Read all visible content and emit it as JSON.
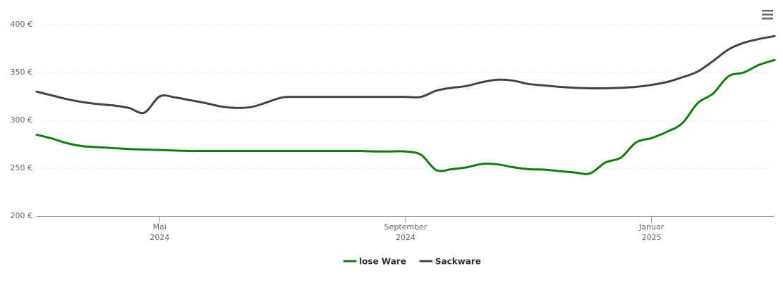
{
  "chart_data": {
    "type": "line",
    "categories": [
      null,
      null,
      null,
      null,
      null,
      null,
      null,
      null,
      {
        "month": "Mai",
        "year": "2024"
      },
      null,
      null,
      null,
      null,
      null,
      null,
      null,
      null,
      null,
      null,
      null,
      null,
      null,
      null,
      null,
      {
        "month": "September",
        "year": "2024"
      },
      null,
      null,
      null,
      null,
      null,
      null,
      null,
      null,
      null,
      null,
      null,
      null,
      null,
      null,
      null,
      {
        "month": "Januar",
        "year": "2025"
      },
      null,
      null,
      null,
      null,
      null,
      null,
      null,
      null
    ],
    "series": [
      {
        "name": "lose Ware",
        "color": "#0e7d0e",
        "values": [
          285,
          281,
          276,
          273,
          272,
          271,
          270,
          269.5,
          269,
          268.5,
          268,
          268,
          268,
          268,
          268,
          268,
          268,
          268,
          268,
          268,
          268,
          268,
          267.5,
          267.5,
          267.5,
          264,
          248,
          249,
          251,
          254.5,
          254,
          251,
          249,
          248.5,
          247,
          245.5,
          244.5,
          256,
          261,
          277,
          281.5,
          288,
          297,
          318,
          328,
          346,
          350,
          358,
          363
        ]
      },
      {
        "name": "Sackware",
        "color": "#434343",
        "values": [
          330,
          326,
          322,
          319,
          317,
          315.5,
          313,
          308,
          325,
          324,
          321,
          318,
          314.5,
          313,
          314,
          319,
          324,
          324.5,
          324.5,
          324.5,
          324.5,
          324.5,
          324.5,
          324.5,
          324.5,
          324.5,
          331,
          334,
          336,
          340,
          342.5,
          341.5,
          338,
          336.5,
          335,
          334,
          333.5,
          333.5,
          334,
          335,
          337,
          340,
          345,
          351,
          362,
          374,
          381,
          385,
          388
        ]
      }
    ],
    "ylim": [
      200,
      400
    ],
    "yticks": [
      {
        "value": 200,
        "label": "200 €"
      },
      {
        "value": 250,
        "label": "250 €"
      },
      {
        "value": 300,
        "label": "300 €"
      },
      {
        "value": 350,
        "label": "350 €"
      },
      {
        "value": 400,
        "label": "400 €"
      }
    ],
    "grid": true,
    "legend": "bottom"
  }
}
